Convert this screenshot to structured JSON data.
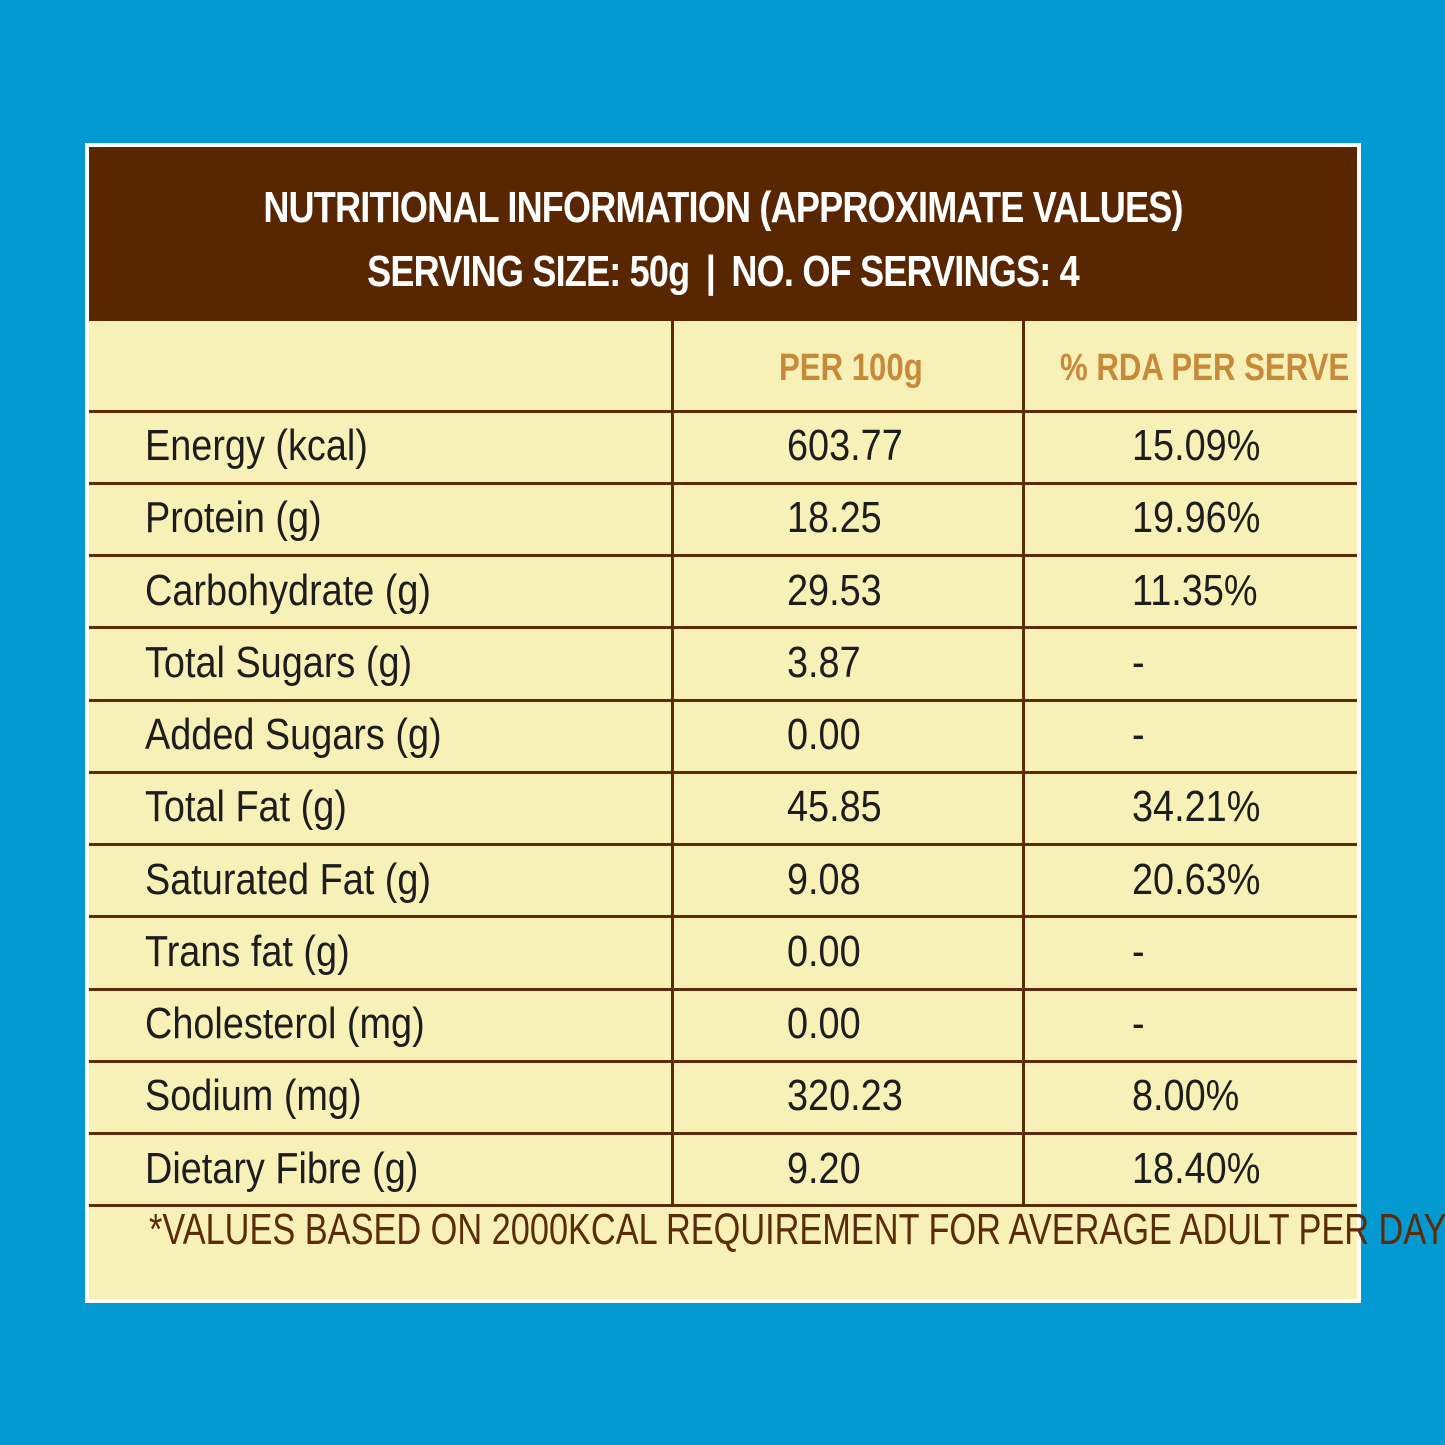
{
  "header": {
    "title": "NUTRITIONAL INFORMATION (APPROXIMATE VALUES)",
    "serving_size": "SERVING SIZE: 50g",
    "separator": "|",
    "servings": "NO. OF SERVINGS: 4"
  },
  "columns": {
    "per100": "PER 100g",
    "rda": "% RDA PER SERVE"
  },
  "rows": [
    {
      "nutrient": "Energy (kcal)",
      "per100": "603.77",
      "rda": "15.09%"
    },
    {
      "nutrient": "Protein (g)",
      "per100": "18.25",
      "rda": "19.96%"
    },
    {
      "nutrient": "Carbohydrate (g)",
      "per100": "29.53",
      "rda": "11.35%"
    },
    {
      "nutrient": "Total Sugars (g)",
      "per100": "3.87",
      "rda": "-"
    },
    {
      "nutrient": "Added Sugars (g)",
      "per100": "0.00",
      "rda": "-"
    },
    {
      "nutrient": "Total Fat (g)",
      "per100": "45.85",
      "rda": "34.21%"
    },
    {
      "nutrient": "Saturated Fat (g)",
      "per100": "9.08",
      "rda": "20.63%"
    },
    {
      "nutrient": "Trans fat (g)",
      "per100": "0.00",
      "rda": "-"
    },
    {
      "nutrient": "Cholesterol (mg)",
      "per100": "0.00",
      "rda": "-"
    },
    {
      "nutrient": "Sodium (mg)",
      "per100": "320.23",
      "rda": "8.00%"
    },
    {
      "nutrient": "Dietary Fibre (g)",
      "per100": "9.20",
      "rda": "18.40%"
    }
  ],
  "footnote": "*VALUES BASED ON 2000KCAL REQUIREMENT FOR AVERAGE ADULT PER DAY",
  "colors": {
    "background": "#0399d1",
    "header": "#582701",
    "table": "#f7f1b8",
    "column_heading": "#c7893a",
    "lines": "#5a2c0b"
  }
}
